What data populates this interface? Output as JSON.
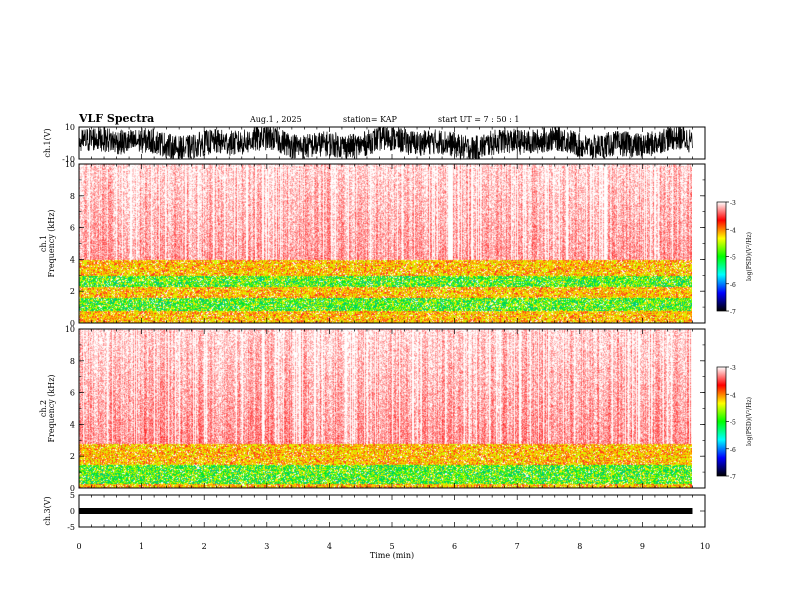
{
  "header": {
    "title": "VLF Spectra",
    "date": "Aug.1  , 2025",
    "station": "station= KAP",
    "start": "start  UT  =   7 : 50 : 1"
  },
  "chart_data": {
    "type": "spectrogram",
    "x_axis": {
      "label": "Time  (min)",
      "range": [
        0,
        10
      ],
      "ticks": [
        0,
        1,
        2,
        3,
        4,
        5,
        6,
        7,
        8,
        9,
        10
      ],
      "data_end": 9.8
    },
    "panels": [
      {
        "id": "ch1-waveform",
        "kind": "waveform",
        "ylabel": "ch.1(V)",
        "ylim": [
          -10,
          10
        ],
        "yticks": [
          10,
          -10
        ],
        "color": "#000000"
      },
      {
        "id": "ch1-spectrogram",
        "kind": "spectrogram",
        "ylabel": "ch.1\nFrequency  (kHz)",
        "ylim": [
          0,
          10
        ],
        "yticks": [
          0,
          2,
          4,
          6,
          8,
          10
        ],
        "band_profile": [
          {
            "f": 0.3,
            "level": "yellow"
          },
          {
            "f": 0.8,
            "level": "yellow"
          },
          {
            "f": 1.6,
            "level": "green"
          },
          {
            "f": 2.3,
            "level": "yellow"
          },
          {
            "f": 3.0,
            "level": "green"
          },
          {
            "f": 4.0,
            "level": "yellow"
          },
          {
            "f": 10.0,
            "level": "red"
          }
        ]
      },
      {
        "id": "ch2-spectrogram",
        "kind": "spectrogram",
        "ylabel": "ch.2\nFrequency  (kHz)",
        "ylim": [
          0,
          10
        ],
        "yticks": [
          0,
          2,
          4,
          6,
          8,
          10
        ],
        "band_profile": [
          {
            "f": 0.3,
            "level": "yellow"
          },
          {
            "f": 0.9,
            "level": "green"
          },
          {
            "f": 1.5,
            "level": "green"
          },
          {
            "f": 2.0,
            "level": "yellow"
          },
          {
            "f": 2.8,
            "level": "yellow"
          },
          {
            "f": 10.0,
            "level": "red"
          }
        ]
      },
      {
        "id": "ch3-waveform",
        "kind": "waveform",
        "ylabel": "ch.3(V)",
        "ylim": [
          -5,
          5
        ],
        "yticks": [
          5,
          0,
          -5
        ],
        "flat_value": 0,
        "color": "#000000"
      }
    ],
    "colorbar": {
      "label": "log(PSD)(V²/Hz)",
      "range": [
        -7,
        -3
      ],
      "ticks": [
        -3,
        -4,
        -5,
        -6,
        -7
      ],
      "colors": [
        "#000000",
        "#0000ff",
        "#00ffff",
        "#00ff00",
        "#ffff00",
        "#ff0000",
        "#ffffff"
      ]
    }
  }
}
